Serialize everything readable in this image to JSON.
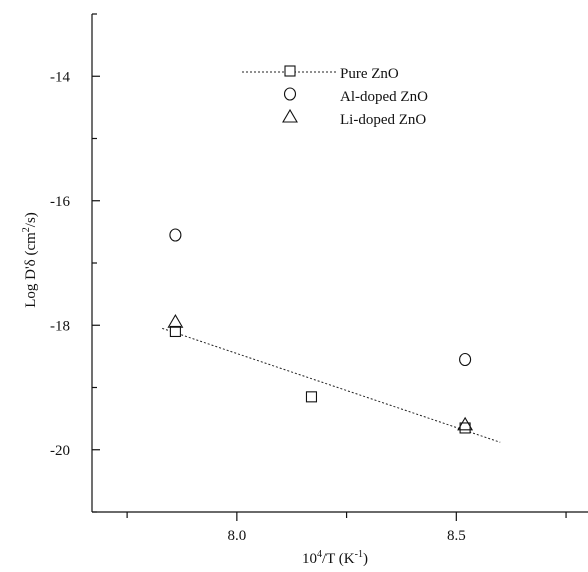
{
  "chart_data": {
    "type": "scatter",
    "xlabel_base": "10",
    "xlabel_sup": "4",
    "xlabel_mid": "/T (K",
    "xlabel_sup2": "-1",
    "xlabel_end": ")",
    "ylabel_prefix": "Log D'δ (cm",
    "ylabel_sup": "2",
    "ylabel_suffix": "/s)",
    "xlim": [
      7.67,
      8.8
    ],
    "ylim": [
      -21,
      -13
    ],
    "x_ticks": [
      8.0,
      8.5
    ],
    "x_tick_labels": [
      "8.0",
      "8.5"
    ],
    "x_minor_ticks": [
      7.75,
      8.25,
      8.75
    ],
    "y_ticks": [
      -14,
      -16,
      -18,
      -20
    ],
    "y_tick_labels": [
      "-14",
      "-16",
      "-18",
      "-20"
    ],
    "y_minor_ticks": [
      -13,
      -15,
      -17,
      -19,
      -21
    ],
    "series": [
      {
        "name": "Pure  ZnO",
        "marker": "square",
        "x": [
          7.86,
          8.17,
          8.52
        ],
        "y": [
          -18.1,
          -19.15,
          -19.65
        ]
      },
      {
        "name": "Al-doped ZnO",
        "marker": "circle",
        "x": [
          7.86,
          8.52
        ],
        "y": [
          -16.55,
          -18.55
        ]
      },
      {
        "name": "Li-doped ZnO",
        "marker": "triangle",
        "x": [
          7.86,
          8.52
        ],
        "y": [
          -17.95,
          -19.6
        ]
      }
    ],
    "fit_line": {
      "x": [
        7.83,
        8.6
      ],
      "y": [
        -18.05,
        -19.88
      ],
      "style": "dotted"
    },
    "legend_position": "top-center",
    "grid": false
  }
}
